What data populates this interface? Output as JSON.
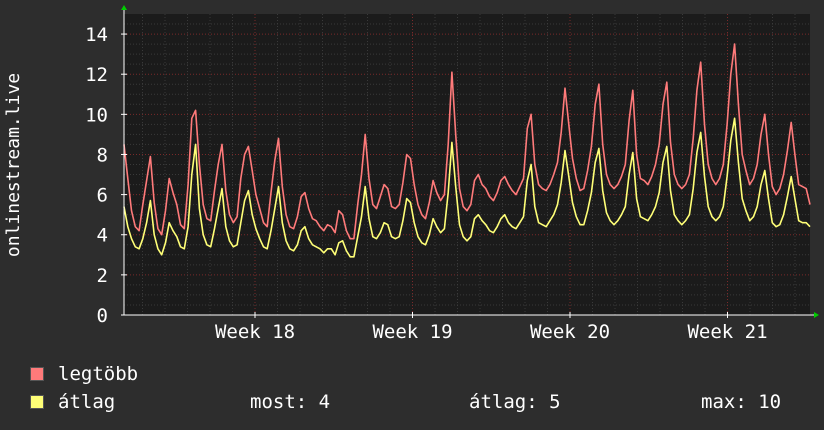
{
  "chart_data": {
    "type": "line",
    "ylabel": "onlinestream.live",
    "ylim": [
      0,
      15
    ],
    "yticks": [
      0,
      2,
      4,
      6,
      8,
      10,
      12,
      14
    ],
    "xticks": [
      "Week 18",
      "Week 19",
      "Week 20",
      "Week 21"
    ],
    "grid": true,
    "colors": {
      "background": "#2d2d2d",
      "plot": "#1b1b1b",
      "grid_minor": "#3a3a3a",
      "grid_major": "#7a2a2a",
      "axis": "#ffffff",
      "arrow": "#00cc00"
    },
    "series": [
      {
        "name": "legtöbb",
        "color": "#ff7a7a",
        "values": [
          8.5,
          6.8,
          5.2,
          4.4,
          4.2,
          5.5,
          6.7,
          7.9,
          5.6,
          4.3,
          4.0,
          5.2,
          6.8,
          6.1,
          5.5,
          4.5,
          4.3,
          6.5,
          9.8,
          10.2,
          7.5,
          5.5,
          4.8,
          4.7,
          6.2,
          7.5,
          8.5,
          6.2,
          5.0,
          4.6,
          4.9,
          6.8,
          8.0,
          8.4,
          7.2,
          6.0,
          5.3,
          4.6,
          4.4,
          6.1,
          7.7,
          8.8,
          6.4,
          5.0,
          4.4,
          4.3,
          4.9,
          5.9,
          6.1,
          5.3,
          4.8,
          4.7,
          4.4,
          4.2,
          4.5,
          4.4,
          4.1,
          5.2,
          5.0,
          4.2,
          3.8,
          3.8,
          5.5,
          7.0,
          9.0,
          6.8,
          5.5,
          5.3,
          5.9,
          6.5,
          6.3,
          5.4,
          5.3,
          5.5,
          6.6,
          8.0,
          7.8,
          6.5,
          5.5,
          5.0,
          4.8,
          5.6,
          6.7,
          6.1,
          5.7,
          6.0,
          8.5,
          12.1,
          9.0,
          6.3,
          5.4,
          5.2,
          5.5,
          6.7,
          7.0,
          6.5,
          6.3,
          5.9,
          5.7,
          6.1,
          6.7,
          6.9,
          6.5,
          6.2,
          6.0,
          6.4,
          6.8,
          9.3,
          10.0,
          7.5,
          6.5,
          6.3,
          6.2,
          6.5,
          7.0,
          7.6,
          9.1,
          11.3,
          9.5,
          7.8,
          6.8,
          6.2,
          6.3,
          7.2,
          8.4,
          10.5,
          11.5,
          8.5,
          7.0,
          6.5,
          6.3,
          6.5,
          6.9,
          7.5,
          9.7,
          11.2,
          8.0,
          6.8,
          6.7,
          6.5,
          6.9,
          7.5,
          8.5,
          10.5,
          11.6,
          8.6,
          7.0,
          6.5,
          6.3,
          6.5,
          7.0,
          8.8,
          11.2,
          12.6,
          9.5,
          7.5,
          6.8,
          6.5,
          6.8,
          7.5,
          9.5,
          12.0,
          13.5,
          10.5,
          8.0,
          7.2,
          6.5,
          6.8,
          7.5,
          9.0,
          10.0,
          8.0,
          6.4,
          6.0,
          6.3,
          7.0,
          8.2,
          9.6,
          8.0,
          6.5,
          6.4,
          6.3,
          5.5
        ]
      },
      {
        "name": "átlag",
        "color": "#ffff77",
        "values": [
          5.4,
          4.4,
          3.8,
          3.4,
          3.3,
          3.8,
          4.6,
          5.7,
          4.0,
          3.3,
          3.0,
          3.6,
          4.6,
          4.2,
          3.9,
          3.4,
          3.3,
          4.4,
          7.0,
          8.5,
          5.3,
          4.0,
          3.5,
          3.4,
          4.3,
          5.3,
          6.3,
          4.4,
          3.7,
          3.4,
          3.5,
          4.6,
          5.7,
          6.2,
          5.0,
          4.3,
          3.8,
          3.4,
          3.3,
          4.2,
          5.3,
          6.4,
          4.6,
          3.7,
          3.3,
          3.2,
          3.5,
          4.2,
          4.4,
          3.8,
          3.5,
          3.4,
          3.3,
          3.1,
          3.3,
          3.3,
          3.0,
          3.6,
          3.7,
          3.2,
          2.9,
          2.9,
          3.9,
          4.9,
          6.4,
          4.8,
          3.9,
          3.8,
          4.1,
          4.6,
          4.5,
          3.9,
          3.8,
          3.9,
          4.7,
          5.8,
          5.6,
          4.6,
          3.9,
          3.6,
          3.5,
          4.0,
          4.8,
          4.4,
          4.1,
          4.3,
          6.1,
          8.6,
          6.4,
          4.5,
          3.9,
          3.7,
          3.9,
          4.8,
          5.0,
          4.7,
          4.5,
          4.2,
          4.1,
          4.4,
          4.8,
          5.0,
          4.6,
          4.4,
          4.3,
          4.6,
          4.9,
          6.7,
          7.5,
          5.4,
          4.6,
          4.5,
          4.4,
          4.7,
          5.0,
          5.5,
          6.6,
          8.2,
          6.9,
          5.6,
          4.9,
          4.5,
          4.5,
          5.2,
          6.1,
          7.6,
          8.3,
          6.2,
          5.1,
          4.7,
          4.5,
          4.7,
          5.0,
          5.4,
          7.0,
          8.1,
          5.8,
          4.9,
          4.8,
          4.7,
          5.0,
          5.4,
          6.1,
          7.6,
          8.4,
          6.2,
          5.0,
          4.7,
          4.5,
          4.7,
          5.0,
          6.3,
          8.1,
          9.1,
          6.9,
          5.4,
          4.9,
          4.7,
          4.9,
          5.4,
          6.9,
          8.7,
          9.8,
          7.6,
          5.8,
          5.2,
          4.7,
          4.9,
          5.4,
          6.5,
          7.2,
          5.8,
          4.6,
          4.4,
          4.5,
          5.0,
          5.9,
          6.9,
          5.8,
          4.7,
          4.6,
          4.6,
          4.4
        ]
      }
    ]
  },
  "legend": [
    {
      "label": "legtöbb",
      "color": "#ff7a7a"
    },
    {
      "label": "átlag",
      "color": "#ffff77"
    }
  ],
  "stats": {
    "now": "most: 4",
    "avg": "átlag: 5",
    "max": "max: 10"
  }
}
